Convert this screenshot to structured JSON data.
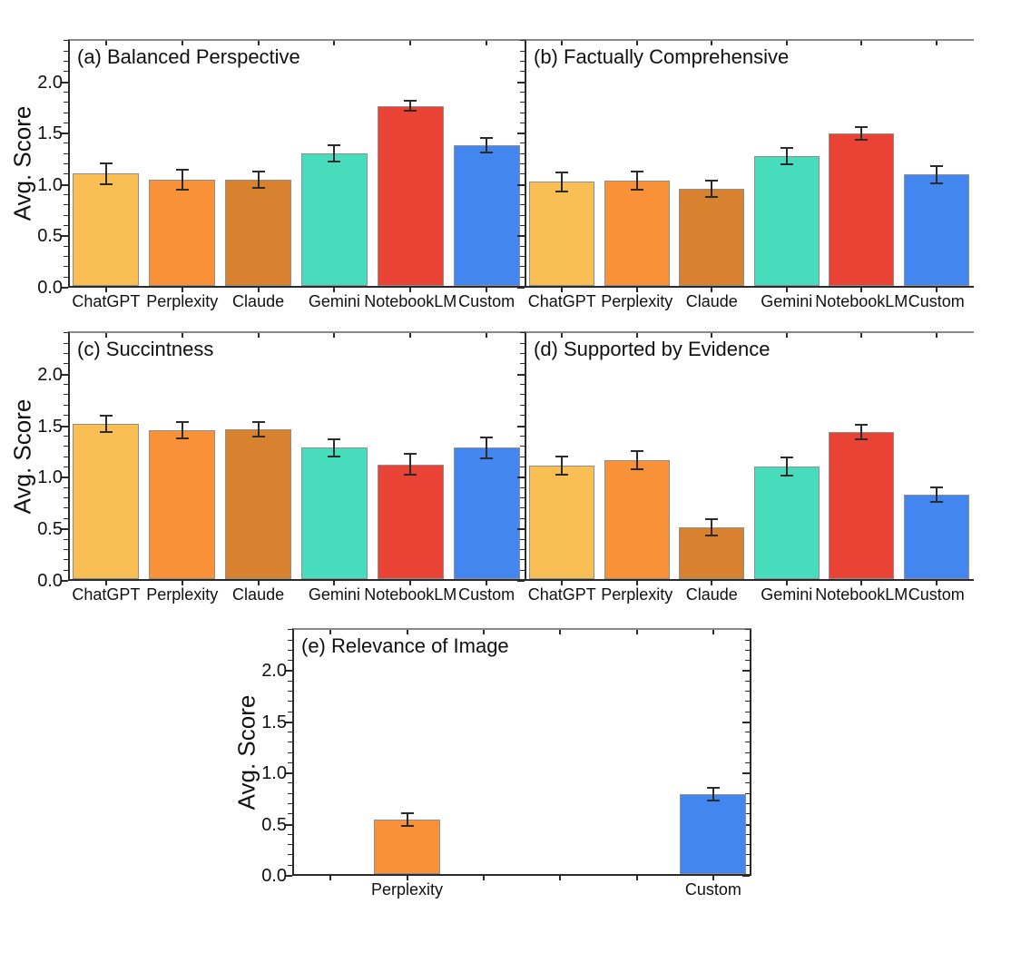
{
  "figure": {
    "background": "#ffffff",
    "axis_color": "#2a2a2a",
    "error_bar_color": "#2b2b2b",
    "bar_edge_color": "#8f8f8f",
    "bar_colors": [
      "#F9BF55",
      "#F89138",
      "#D8812F",
      "#47DCBB",
      "#E94335",
      "#4386F0"
    ],
    "ylabel": "Avg. Score"
  },
  "chart_data": [
    {
      "type": "bar",
      "panel": "a",
      "title": "(a) Balanced Perspective",
      "ylabel": "Avg. Score",
      "xlabel": "",
      "categories": [
        "ChatGPT",
        "Perplexity",
        "Claude",
        "Gemini",
        "NotebookLM",
        "Custom"
      ],
      "values": [
        1.11,
        1.05,
        1.05,
        1.31,
        1.77,
        1.39
      ],
      "errors": [
        0.1,
        0.1,
        0.08,
        0.08,
        0.05,
        0.07
      ],
      "ylim": [
        0,
        2.42
      ],
      "yticks": [
        0,
        0.5,
        1,
        1.5,
        2
      ],
      "ytick_labels": [
        "0.0",
        "0.5",
        "1.0",
        "1.5",
        "2.0"
      ],
      "grid": false,
      "legend": "none"
    },
    {
      "type": "bar",
      "panel": "b",
      "title": "(b) Factually Comprehensive",
      "ylabel": "",
      "xlabel": "",
      "categories": [
        "ChatGPT",
        "Perplexity",
        "Claude",
        "Gemini",
        "NotebookLM",
        "Custom"
      ],
      "values": [
        1.03,
        1.04,
        0.96,
        1.28,
        1.5,
        1.1
      ],
      "errors": [
        0.09,
        0.09,
        0.08,
        0.08,
        0.06,
        0.08
      ],
      "ylim": [
        0,
        2.42
      ],
      "yticks": [
        0,
        0.5,
        1,
        1.5,
        2
      ],
      "ytick_labels": [],
      "grid": false,
      "legend": "none"
    },
    {
      "type": "bar",
      "panel": "c",
      "title": "(c) Succintness",
      "ylabel": "Avg. Score",
      "xlabel": "",
      "categories": [
        "ChatGPT",
        "Perplexity",
        "Claude",
        "Gemini",
        "NotebookLM",
        "Custom"
      ],
      "values": [
        1.52,
        1.46,
        1.47,
        1.29,
        1.13,
        1.29
      ],
      "errors": [
        0.08,
        0.08,
        0.07,
        0.08,
        0.1,
        0.1
      ],
      "ylim": [
        0,
        2.42
      ],
      "yticks": [
        0,
        0.5,
        1,
        1.5,
        2
      ],
      "ytick_labels": [
        "0.0",
        "0.5",
        "1.0",
        "1.5",
        "2.0"
      ],
      "grid": false,
      "legend": "none"
    },
    {
      "type": "bar",
      "panel": "d",
      "title": "(d) Supported by Evidence",
      "ylabel": "",
      "xlabel": "",
      "categories": [
        "ChatGPT",
        "Perplexity",
        "Claude",
        "Gemini",
        "NotebookLM",
        "Custom"
      ],
      "values": [
        1.12,
        1.17,
        0.52,
        1.11,
        1.44,
        0.84
      ],
      "errors": [
        0.09,
        0.09,
        0.08,
        0.09,
        0.07,
        0.07
      ],
      "ylim": [
        0,
        2.42
      ],
      "yticks": [
        0,
        0.5,
        1,
        1.5,
        2
      ],
      "ytick_labels": [],
      "grid": false,
      "legend": "none"
    },
    {
      "type": "bar",
      "panel": "e",
      "title": "(e) Relevance of Image",
      "ylabel": "Avg. Score",
      "xlabel": "",
      "categories": [
        "Perplexity",
        "Custom"
      ],
      "positions": [
        1,
        5
      ],
      "color_indices": [
        1,
        5
      ],
      "values": [
        0.55,
        0.8
      ],
      "errors": [
        0.06,
        0.06
      ],
      "ylim": [
        0,
        2.42
      ],
      "yticks": [
        0,
        0.5,
        1,
        1.5,
        2
      ],
      "ytick_labels": [
        "0.0",
        "0.5",
        "1.0",
        "1.5",
        "2.0"
      ],
      "grid": false,
      "legend": "none"
    }
  ]
}
